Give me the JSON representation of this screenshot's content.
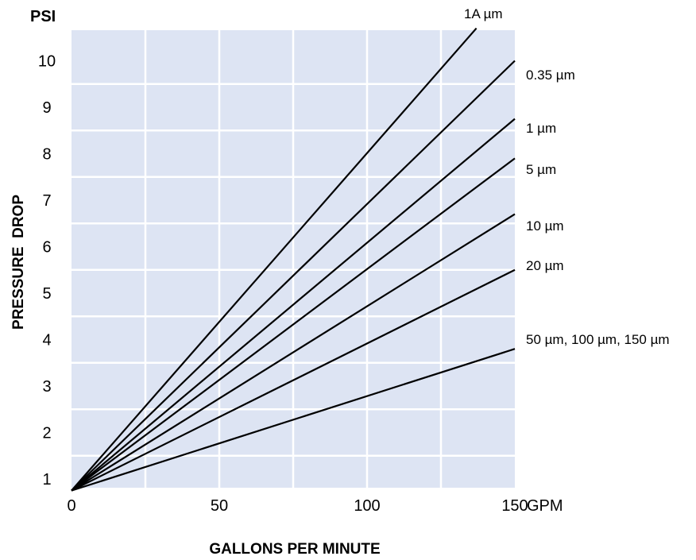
{
  "chart_data": {
    "type": "line",
    "xlabel": "GALLONS PER MINUTE",
    "ylabel": "PRESSURE  DROP",
    "y_unit": "PSI",
    "x_unit": "GPM",
    "x_ticks": [
      "0",
      "50",
      "100",
      "150"
    ],
    "y_ticks": [
      "1",
      "2",
      "3",
      "4",
      "5",
      "6",
      "7",
      "8",
      "9",
      "10"
    ],
    "xlim": [
      0,
      150
    ],
    "ylim": [
      0.75,
      10.7
    ],
    "grid": true,
    "colors": {
      "plot_bg": "#dde4f3",
      "grid": "#ffffff",
      "line": "#000000"
    },
    "series": [
      {
        "name": "1A µm",
        "x": [
          0,
          137
        ],
        "y": [
          0.75,
          10.7
        ]
      },
      {
        "name": "0.35 µm",
        "x": [
          0,
          150
        ],
        "y": [
          0.75,
          10.0
        ]
      },
      {
        "name": "1 µm",
        "x": [
          0,
          150
        ],
        "y": [
          0.75,
          8.75
        ]
      },
      {
        "name": "5 µm",
        "x": [
          0,
          150
        ],
        "y": [
          0.75,
          7.9
        ]
      },
      {
        "name": "10 µm",
        "x": [
          0,
          150
        ],
        "y": [
          0.75,
          6.7
        ]
      },
      {
        "name": "20 µm",
        "x": [
          0,
          150
        ],
        "y": [
          0.75,
          5.5
        ]
      },
      {
        "name": "50 µm, 100 µm, 150 µm",
        "x": [
          0,
          150
        ],
        "y": [
          0.75,
          3.8
        ]
      }
    ]
  }
}
